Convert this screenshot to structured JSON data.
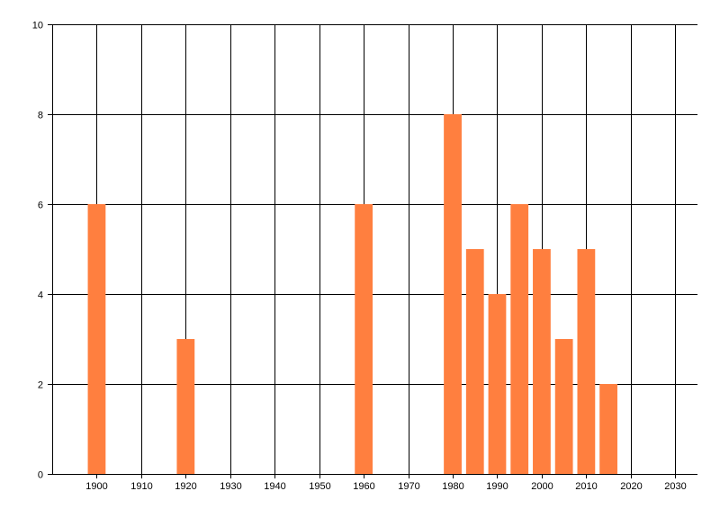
{
  "chart_data": {
    "type": "bar",
    "title": "",
    "xlabel": "",
    "ylabel": "",
    "x": [
      1900,
      1920,
      1960,
      1980,
      1985,
      1990,
      1995,
      2000,
      2005,
      2010,
      2015
    ],
    "values": [
      6,
      3,
      6,
      8,
      5,
      4,
      6,
      5,
      3,
      5,
      2
    ],
    "xlim": [
      1890,
      2035
    ],
    "ylim": [
      0,
      10
    ],
    "xticks": [
      1900,
      1910,
      1920,
      1930,
      1940,
      1950,
      1960,
      1970,
      1980,
      1990,
      2000,
      2010,
      2020,
      2030
    ],
    "yticks": [
      0,
      2,
      4,
      6,
      8,
      10
    ],
    "grid": true,
    "legend": "none",
    "bar_color": "#FF7F3F",
    "grid_color": "#000000"
  }
}
